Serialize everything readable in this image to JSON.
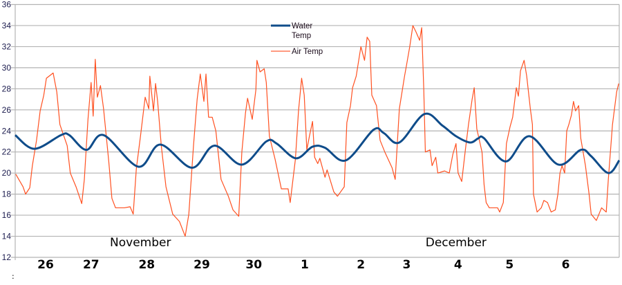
{
  "chart_data": {
    "type": "line",
    "title": "",
    "xlabel": "",
    "ylabel": "",
    "ylim": [
      12,
      36
    ],
    "yticks": [
      12,
      14,
      16,
      18,
      20,
      22,
      24,
      26,
      28,
      30,
      32,
      34,
      36
    ],
    "xlim": [
      0,
      11.62
    ],
    "grid": true,
    "legend_position": "top-center",
    "day_labels": [
      {
        "label": "26",
        "x": 0.585
      },
      {
        "label": "27",
        "x": 1.46
      },
      {
        "label": "28",
        "x": 2.53
      },
      {
        "label": "29",
        "x": 3.59
      },
      {
        "label": "30",
        "x": 4.59
      },
      {
        "label": "1",
        "x": 5.57
      },
      {
        "label": "2",
        "x": 6.65
      },
      {
        "label": "3",
        "x": 7.53
      },
      {
        "label": "4",
        "x": 8.52
      },
      {
        "label": "5",
        "x": 9.51
      },
      {
        "label": "6",
        "x": 10.59
      }
    ],
    "month_labels": [
      {
        "label": "November",
        "x": 2.41
      },
      {
        "label": "December",
        "x": 8.48
      }
    ],
    "footnote_mark": ":",
    "series": [
      {
        "name": "Water Temp",
        "legend_lines": [
          "Water",
          "Temp"
        ],
        "color": "#0f4c8a",
        "points": [
          [
            0,
            23.6
          ],
          [
            0.37,
            22.3
          ],
          [
            0.88,
            23.6
          ],
          [
            1.04,
            23.6
          ],
          [
            1.37,
            22.2
          ],
          [
            1.7,
            23.6
          ],
          [
            2.37,
            20.6
          ],
          [
            2.79,
            22.7
          ],
          [
            3.4,
            20.5
          ],
          [
            3.83,
            22.6
          ],
          [
            4.36,
            20.8
          ],
          [
            4.83,
            23.0
          ],
          [
            5.03,
            22.8
          ],
          [
            5.4,
            21.4
          ],
          [
            5.72,
            22.5
          ],
          [
            5.96,
            22.4
          ],
          [
            6.36,
            21.2
          ],
          [
            6.89,
            24.1
          ],
          [
            7.09,
            23.8
          ],
          [
            7.39,
            22.9
          ],
          [
            7.87,
            25.6
          ],
          [
            8.22,
            24.5
          ],
          [
            8.48,
            23.5
          ],
          [
            8.75,
            22.9
          ],
          [
            8.91,
            23.3
          ],
          [
            9.02,
            23.3
          ],
          [
            9.44,
            21.1
          ],
          [
            9.89,
            23.5
          ],
          [
            10.45,
            20.8
          ],
          [
            10.88,
            22.2
          ],
          [
            11.08,
            21.6
          ],
          [
            11.41,
            20.0
          ],
          [
            11.62,
            21.2
          ]
        ]
      },
      {
        "name": "Air Temp",
        "legend_lines": [
          "Air Temp"
        ],
        "color": "#ff5020",
        "points": [
          [
            0.01,
            19.9
          ],
          [
            0.15,
            18.7
          ],
          [
            0.2,
            18.0
          ],
          [
            0.28,
            18.6
          ],
          [
            0.33,
            20.7
          ],
          [
            0.41,
            23.1
          ],
          [
            0.48,
            25.9
          ],
          [
            0.55,
            27.4
          ],
          [
            0.6,
            29.0
          ],
          [
            0.73,
            29.5
          ],
          [
            0.8,
            27.7
          ],
          [
            0.86,
            24.6
          ],
          [
            1.0,
            22.6
          ],
          [
            1.06,
            20.0
          ],
          [
            1.17,
            18.7
          ],
          [
            1.28,
            17.1
          ],
          [
            1.33,
            19.4
          ],
          [
            1.4,
            25.1
          ],
          [
            1.46,
            28.6
          ],
          [
            1.5,
            25.4
          ],
          [
            1.54,
            30.8
          ],
          [
            1.58,
            27.2
          ],
          [
            1.64,
            28.3
          ],
          [
            1.7,
            26.1
          ],
          [
            1.8,
            21.1
          ],
          [
            1.86,
            17.6
          ],
          [
            1.93,
            16.7
          ],
          [
            2.1,
            16.7
          ],
          [
            2.21,
            16.8
          ],
          [
            2.27,
            16.1
          ],
          [
            2.33,
            20.4
          ],
          [
            2.41,
            23.5
          ],
          [
            2.5,
            27.2
          ],
          [
            2.57,
            26.1
          ],
          [
            2.59,
            29.2
          ],
          [
            2.66,
            25.9
          ],
          [
            2.7,
            28.5
          ],
          [
            2.74,
            26.8
          ],
          [
            2.81,
            22.6
          ],
          [
            2.9,
            18.7
          ],
          [
            3.03,
            16.1
          ],
          [
            3.16,
            15.4
          ],
          [
            3.27,
            14.0
          ],
          [
            3.34,
            16.1
          ],
          [
            3.43,
            22.6
          ],
          [
            3.5,
            27.0
          ],
          [
            3.56,
            29.4
          ],
          [
            3.63,
            26.8
          ],
          [
            3.67,
            29.4
          ],
          [
            3.72,
            25.3
          ],
          [
            3.79,
            25.3
          ],
          [
            3.86,
            24.0
          ],
          [
            3.96,
            19.4
          ],
          [
            4.1,
            17.8
          ],
          [
            4.19,
            16.5
          ],
          [
            4.3,
            15.9
          ],
          [
            4.36,
            22.0
          ],
          [
            4.43,
            25.7
          ],
          [
            4.47,
            27.1
          ],
          [
            4.56,
            25.1
          ],
          [
            4.63,
            27.9
          ],
          [
            4.65,
            30.7
          ],
          [
            4.71,
            29.6
          ],
          [
            4.79,
            29.9
          ],
          [
            4.83,
            28.6
          ],
          [
            4.89,
            23.5
          ],
          [
            5.0,
            21.3
          ],
          [
            5.12,
            18.5
          ],
          [
            5.25,
            18.5
          ],
          [
            5.29,
            17.2
          ],
          [
            5.39,
            21.3
          ],
          [
            5.45,
            25.9
          ],
          [
            5.51,
            29.0
          ],
          [
            5.56,
            27.4
          ],
          [
            5.61,
            22.2
          ],
          [
            5.66,
            23.5
          ],
          [
            5.72,
            24.9
          ],
          [
            5.76,
            21.5
          ],
          [
            5.82,
            20.9
          ],
          [
            5.86,
            21.4
          ],
          [
            5.96,
            19.6
          ],
          [
            6.0,
            20.3
          ],
          [
            6.13,
            18.2
          ],
          [
            6.2,
            17.8
          ],
          [
            6.33,
            18.7
          ],
          [
            6.38,
            24.8
          ],
          [
            6.45,
            26.4
          ],
          [
            6.49,
            28.1
          ],
          [
            6.56,
            29.2
          ],
          [
            6.65,
            32.0
          ],
          [
            6.72,
            30.7
          ],
          [
            6.77,
            32.9
          ],
          [
            6.82,
            32.5
          ],
          [
            6.86,
            27.4
          ],
          [
            6.95,
            26.4
          ],
          [
            7.02,
            23.1
          ],
          [
            7.11,
            22.0
          ],
          [
            7.25,
            20.5
          ],
          [
            7.31,
            19.4
          ],
          [
            7.39,
            26.1
          ],
          [
            7.49,
            29.2
          ],
          [
            7.53,
            30.3
          ],
          [
            7.59,
            32.0
          ],
          [
            7.65,
            34.0
          ],
          [
            7.71,
            33.4
          ],
          [
            7.78,
            32.6
          ],
          [
            7.82,
            33.8
          ],
          [
            7.86,
            27.9
          ],
          [
            7.89,
            22.0
          ],
          [
            7.98,
            22.2
          ],
          [
            8.02,
            20.7
          ],
          [
            8.09,
            21.5
          ],
          [
            8.13,
            20.0
          ],
          [
            8.26,
            20.2
          ],
          [
            8.35,
            20.0
          ],
          [
            8.42,
            21.8
          ],
          [
            8.48,
            22.8
          ],
          [
            8.52,
            20.0
          ],
          [
            8.59,
            19.2
          ],
          [
            8.66,
            22.2
          ],
          [
            8.72,
            24.6
          ],
          [
            8.79,
            27.0
          ],
          [
            8.83,
            28.1
          ],
          [
            8.88,
            24.2
          ],
          [
            8.98,
            22.0
          ],
          [
            9.02,
            18.9
          ],
          [
            9.06,
            17.2
          ],
          [
            9.12,
            16.7
          ],
          [
            9.28,
            16.7
          ],
          [
            9.32,
            16.3
          ],
          [
            9.39,
            17.2
          ],
          [
            9.45,
            22.8
          ],
          [
            9.52,
            24.4
          ],
          [
            9.57,
            25.3
          ],
          [
            9.64,
            28.1
          ],
          [
            9.68,
            27.3
          ],
          [
            9.72,
            29.7
          ],
          [
            9.79,
            30.7
          ],
          [
            9.84,
            29.2
          ],
          [
            9.91,
            26.1
          ],
          [
            9.95,
            24.6
          ],
          [
            9.97,
            18.0
          ],
          [
            10.04,
            16.3
          ],
          [
            10.12,
            16.7
          ],
          [
            10.17,
            17.4
          ],
          [
            10.24,
            17.2
          ],
          [
            10.31,
            16.3
          ],
          [
            10.39,
            16.5
          ],
          [
            10.44,
            18.0
          ],
          [
            10.48,
            20.0
          ],
          [
            10.52,
            20.7
          ],
          [
            10.57,
            20.0
          ],
          [
            10.61,
            24.0
          ],
          [
            10.65,
            24.6
          ],
          [
            10.7,
            25.5
          ],
          [
            10.74,
            26.8
          ],
          [
            10.78,
            25.9
          ],
          [
            10.84,
            26.4
          ],
          [
            10.88,
            23.3
          ],
          [
            10.97,
            20.7
          ],
          [
            11.04,
            18.0
          ],
          [
            11.08,
            16.1
          ],
          [
            11.18,
            15.5
          ],
          [
            11.28,
            16.7
          ],
          [
            11.37,
            16.3
          ],
          [
            11.41,
            19.4
          ],
          [
            11.49,
            24.6
          ],
          [
            11.57,
            27.7
          ],
          [
            11.61,
            28.5
          ]
        ]
      }
    ]
  }
}
